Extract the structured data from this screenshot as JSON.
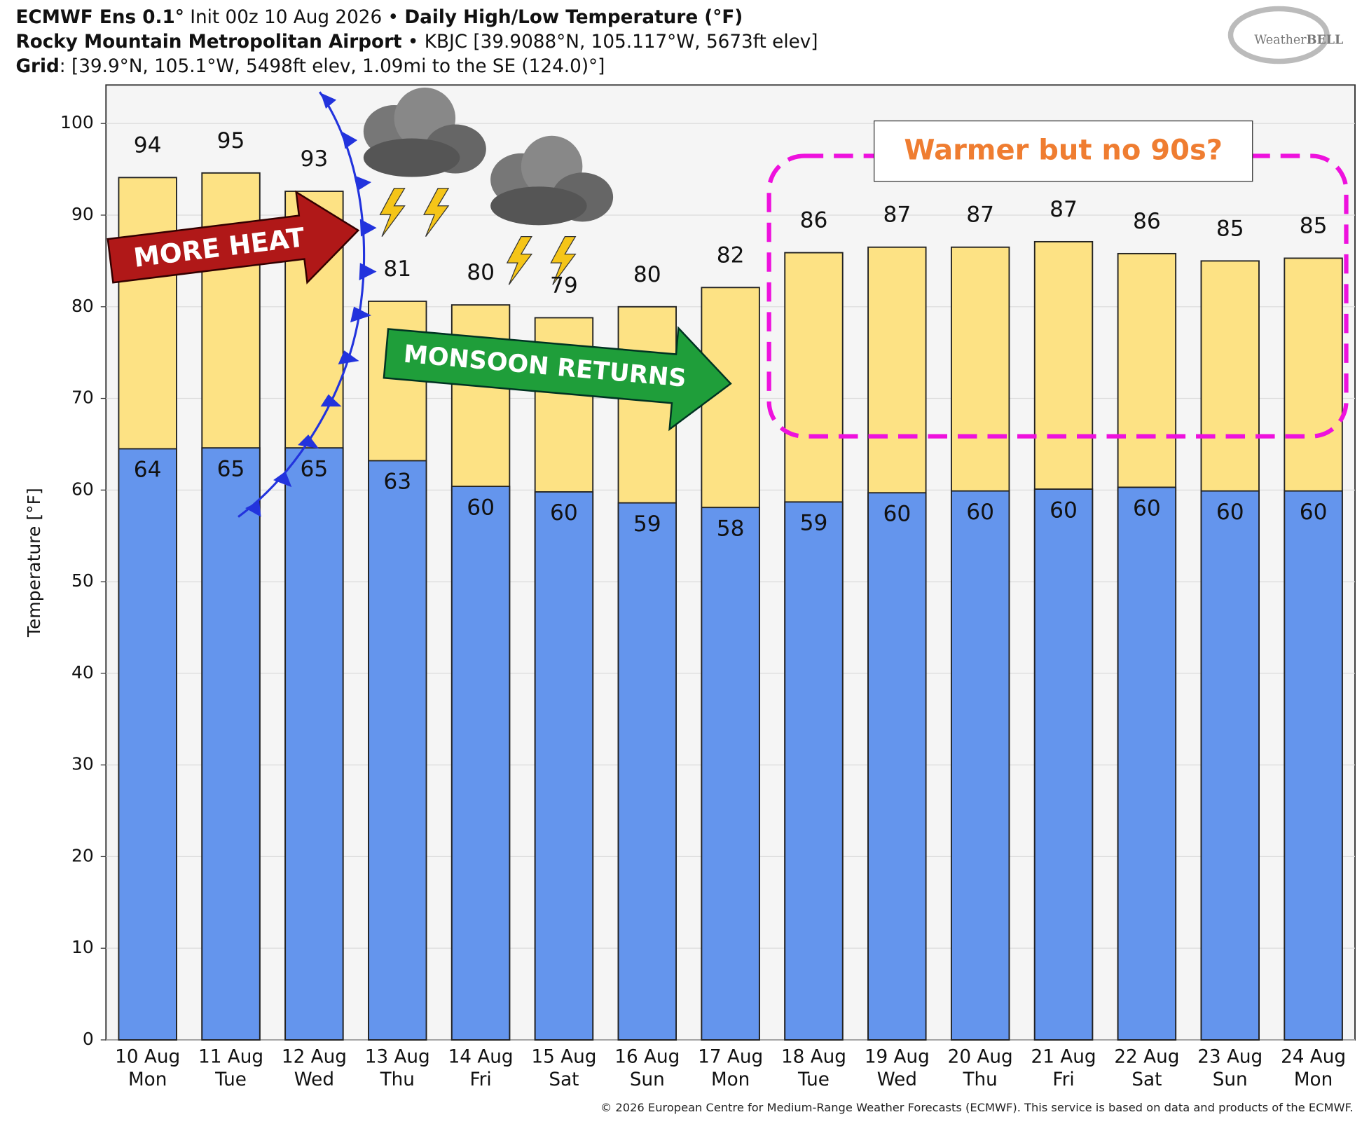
{
  "header": {
    "line1": [
      "ECMWF Ens 0.1°",
      " Init 00z 10 Aug 2026 • ",
      "Daily High/Low Temperature (°F)"
    ],
    "line2": [
      "Rocky Mountain Metropolitan Airport",
      " • KBJC [39.9088°N, 105.117°W, 5673ft elev]"
    ],
    "line3": [
      "Grid",
      ": [39.9°N, 105.1°W, 5498ft elev, 1.09mi to the SE (124.0)°]"
    ],
    "logo": [
      "Weather",
      "BELL"
    ]
  },
  "chart_data": {
    "type": "bar",
    "y_label": "Temperature [°F]",
    "categories": [
      [
        "10 Aug",
        "Mon"
      ],
      [
        "11 Aug",
        "Tue"
      ],
      [
        "12 Aug",
        "Wed"
      ],
      [
        "13 Aug",
        "Thu"
      ],
      [
        "14 Aug",
        "Fri"
      ],
      [
        "15 Aug",
        "Sat"
      ],
      [
        "16 Aug",
        "Sun"
      ],
      [
        "17 Aug",
        "Mon"
      ],
      [
        "18 Aug",
        "Tue"
      ],
      [
        "19 Aug",
        "Wed"
      ],
      [
        "20 Aug",
        "Thu"
      ],
      [
        "21 Aug",
        "Fri"
      ],
      [
        "22 Aug",
        "Sat"
      ],
      [
        "23 Aug",
        "Sun"
      ],
      [
        "24 Aug",
        "Mon"
      ]
    ],
    "series": [
      {
        "color": "#fde284",
        "values": [
          94.1,
          94.6,
          92.6,
          80.6,
          80.2,
          78.8,
          80.0,
          82.1,
          85.9,
          86.5,
          86.5,
          87.1,
          85.8,
          85.0,
          85.3
        ],
        "value_labels": [
          "94",
          "95",
          "93",
          "81",
          "80",
          "79",
          "80",
          "82",
          "86",
          "87",
          "87",
          "87",
          "86",
          "85",
          "85"
        ]
      },
      {
        "color": "#6495ed",
        "values": [
          64.5,
          64.6,
          64.6,
          63.2,
          60.4,
          59.8,
          58.6,
          58.1,
          58.7,
          59.7,
          59.9,
          60.1,
          60.3,
          59.9,
          59.9
        ],
        "value_labels": [
          "64",
          "65",
          "65",
          "63",
          "60",
          "60",
          "59",
          "58",
          "59",
          "60",
          "60",
          "60",
          "60",
          "60",
          "60"
        ]
      }
    ],
    "ylim": [
      0,
      104.2
    ],
    "yticks": [
      0,
      10,
      20,
      30,
      40,
      50,
      60,
      70,
      80,
      90,
      100
    ],
    "grid": true,
    "annotations": [
      "MORE HEAT",
      "MONSOON RETURNS",
      "Warmer but no 90s?"
    ],
    "footer": "© 2026 European Centre for Medium-Range Weather Forecasts (ECMWF). This service is based on data and products of the ECMWF."
  }
}
